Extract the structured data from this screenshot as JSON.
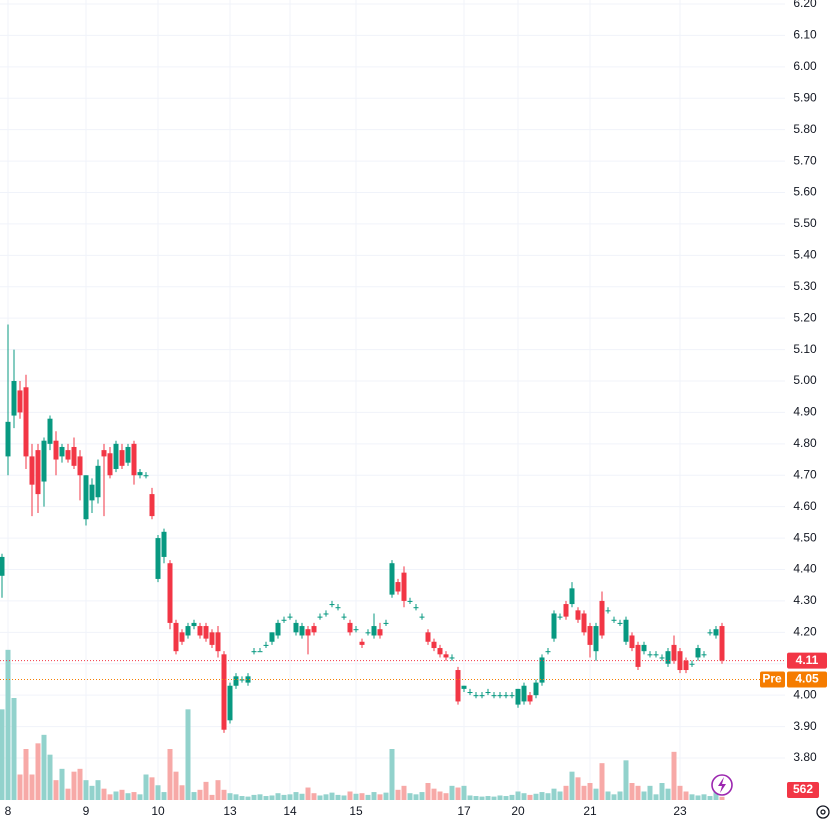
{
  "chart_data": {
    "type": "candlestick",
    "categories": [
      null,
      "8",
      null,
      null,
      null,
      null,
      null,
      null,
      null,
      null,
      null,
      null,
      null,
      null,
      "9",
      null,
      null,
      null,
      null,
      null,
      null,
      null,
      null,
      null,
      null,
      null,
      "10",
      null,
      null,
      null,
      null,
      null,
      null,
      null,
      null,
      null,
      null,
      null,
      "13",
      null,
      null,
      null,
      null,
      null,
      null,
      null,
      null,
      null,
      "14",
      null,
      null,
      null,
      null,
      null,
      null,
      null,
      null,
      null,
      null,
      "15",
      null,
      null,
      null,
      null,
      null,
      null,
      null,
      null,
      null,
      null,
      null,
      null,
      null,
      null,
      null,
      null,
      null,
      "17",
      null,
      null,
      null,
      null,
      null,
      null,
      null,
      null,
      "20",
      null,
      null,
      null,
      null,
      null,
      null,
      null,
      null,
      null,
      null,
      null,
      "21",
      null,
      null,
      null,
      null,
      null,
      null,
      null,
      null,
      null,
      null,
      null,
      null,
      null,
      null,
      "23",
      null,
      null,
      null,
      null,
      null,
      null,
      null
    ],
    "ohlc": [
      [
        4.38,
        4.45,
        4.31,
        4.44
      ],
      [
        4.76,
        5.18,
        4.7,
        4.87
      ],
      [
        4.89,
        5.1,
        4.85,
        5.0
      ],
      [
        4.97,
        5.0,
        4.88,
        4.9
      ],
      [
        4.98,
        5.02,
        4.72,
        4.76
      ],
      [
        4.76,
        4.8,
        4.57,
        4.67
      ],
      [
        4.78,
        4.8,
        4.58,
        4.64
      ],
      [
        4.68,
        4.82,
        4.6,
        4.81
      ],
      [
        4.8,
        4.89,
        4.78,
        4.88
      ],
      [
        4.81,
        4.84,
        4.7,
        4.75
      ],
      [
        4.76,
        4.8,
        4.74,
        4.79
      ],
      [
        4.78,
        4.8,
        4.74,
        4.75
      ],
      [
        4.79,
        4.82,
        4.72,
        4.73
      ],
      [
        4.76,
        4.78,
        4.62,
        4.7
      ],
      [
        4.56,
        4.7,
        4.54,
        4.7
      ],
      [
        4.62,
        4.69,
        4.58,
        4.67
      ],
      [
        4.63,
        4.75,
        4.61,
        4.73
      ],
      [
        4.78,
        4.8,
        4.57,
        4.76
      ],
      [
        4.77,
        4.79,
        4.69,
        4.7
      ],
      [
        4.72,
        4.81,
        4.71,
        4.8
      ],
      [
        4.78,
        4.8,
        4.72,
        4.73
      ],
      [
        4.74,
        4.8,
        4.73,
        4.79
      ],
      [
        4.8,
        4.81,
        4.67,
        4.7
      ],
      [
        4.7,
        4.72,
        4.69,
        4.71
      ],
      [
        4.7,
        4.71,
        4.69,
        4.7
      ],
      [
        4.64,
        4.66,
        4.56,
        4.57
      ],
      [
        4.37,
        4.51,
        4.36,
        4.5
      ],
      [
        4.44,
        4.53,
        4.42,
        4.52
      ],
      [
        4.42,
        4.43,
        4.21,
        4.23
      ],
      [
        4.23,
        4.24,
        4.13,
        4.14
      ],
      [
        4.2,
        4.21,
        4.16,
        4.17
      ],
      [
        4.19,
        4.23,
        4.18,
        4.22
      ],
      [
        4.22,
        4.24,
        4.21,
        4.23
      ],
      [
        4.22,
        4.23,
        4.18,
        4.19
      ],
      [
        4.22,
        4.23,
        4.17,
        4.18
      ],
      [
        4.2,
        4.21,
        4.15,
        4.16
      ],
      [
        4.2,
        4.22,
        4.12,
        4.14
      ],
      [
        4.13,
        4.14,
        3.88,
        3.89
      ],
      [
        3.92,
        4.04,
        3.91,
        4.03
      ],
      [
        4.03,
        4.07,
        4.02,
        4.06
      ],
      [
        4.05,
        4.06,
        4.04,
        4.05
      ],
      [
        4.04,
        4.07,
        4.03,
        4.06
      ],
      [
        4.14,
        4.15,
        4.13,
        4.14
      ],
      [
        4.14,
        4.15,
        4.14,
        4.14
      ],
      [
        4.16,
        4.17,
        4.15,
        4.16
      ],
      [
        4.17,
        4.2,
        4.16,
        4.2
      ],
      [
        4.19,
        4.24,
        4.18,
        4.23
      ],
      [
        4.24,
        4.25,
        4.23,
        4.24
      ],
      [
        4.25,
        4.26,
        4.24,
        4.25
      ],
      [
        4.2,
        4.24,
        4.19,
        4.23
      ],
      [
        4.19,
        4.23,
        4.18,
        4.22
      ],
      [
        4.21,
        4.22,
        4.13,
        4.19
      ],
      [
        4.22,
        4.23,
        4.19,
        4.2
      ],
      [
        4.25,
        4.26,
        4.24,
        4.25
      ],
      [
        4.26,
        4.27,
        4.25,
        4.26
      ],
      [
        4.29,
        4.3,
        4.28,
        4.29
      ],
      [
        4.28,
        4.29,
        4.27,
        4.28
      ],
      [
        4.25,
        4.26,
        4.24,
        4.25
      ],
      [
        4.23,
        4.24,
        4.19,
        4.2
      ],
      [
        4.21,
        4.22,
        4.2,
        4.21
      ],
      [
        4.17,
        4.18,
        4.15,
        4.16
      ],
      [
        4.2,
        4.21,
        4.19,
        4.2
      ],
      [
        4.19,
        4.26,
        4.18,
        4.22
      ],
      [
        4.21,
        4.23,
        4.18,
        4.19
      ],
      [
        4.23,
        4.24,
        4.22,
        4.23
      ],
      [
        4.32,
        4.43,
        4.31,
        4.42
      ],
      [
        4.36,
        4.37,
        4.32,
        4.33
      ],
      [
        4.39,
        4.41,
        4.28,
        4.3
      ],
      [
        4.3,
        4.31,
        4.29,
        4.3
      ],
      [
        4.28,
        4.29,
        4.27,
        4.28
      ],
      [
        4.25,
        4.26,
        4.24,
        4.25
      ],
      [
        4.2,
        4.21,
        4.16,
        4.17
      ],
      [
        4.17,
        4.18,
        4.14,
        4.15
      ],
      [
        4.15,
        4.16,
        4.12,
        4.13
      ],
      [
        4.13,
        4.14,
        4.11,
        4.12
      ],
      [
        4.12,
        4.13,
        4.11,
        4.12
      ],
      [
        4.08,
        4.09,
        3.97,
        3.98
      ],
      [
        4.02,
        4.03,
        4.01,
        4.03
      ],
      [
        4.01,
        4.02,
        4.0,
        4.01
      ],
      [
        4.0,
        4.01,
        3.99,
        4.0
      ],
      [
        4.0,
        4.01,
        3.99,
        4.0
      ],
      [
        4.01,
        4.02,
        4.0,
        4.01
      ],
      [
        4.0,
        4.01,
        3.99,
        4.0
      ],
      [
        4.0,
        4.01,
        3.99,
        4.0
      ],
      [
        4.0,
        4.01,
        3.99,
        4.0
      ],
      [
        4.0,
        4.01,
        3.99,
        4.0
      ],
      [
        3.97,
        4.02,
        3.96,
        4.02
      ],
      [
        3.98,
        4.04,
        3.97,
        4.03
      ],
      [
        4.0,
        4.01,
        3.97,
        3.98
      ],
      [
        4.0,
        4.05,
        3.99,
        4.04
      ],
      [
        4.04,
        4.13,
        4.03,
        4.12
      ],
      [
        4.14,
        4.15,
        4.13,
        4.14
      ],
      [
        4.18,
        4.27,
        4.17,
        4.26
      ],
      [
        4.25,
        4.26,
        4.24,
        4.25
      ],
      [
        4.29,
        4.3,
        4.24,
        4.25
      ],
      [
        4.29,
        4.36,
        4.28,
        4.34
      ],
      [
        4.27,
        4.28,
        4.23,
        4.24
      ],
      [
        4.26,
        4.27,
        4.19,
        4.2
      ],
      [
        4.22,
        4.23,
        4.12,
        4.16
      ],
      [
        4.14,
        4.23,
        4.11,
        4.22
      ],
      [
        4.3,
        4.33,
        4.18,
        4.19
      ],
      [
        4.27,
        4.28,
        4.26,
        4.27
      ],
      [
        4.24,
        4.25,
        4.23,
        4.24
      ],
      [
        4.23,
        4.24,
        4.22,
        4.23
      ],
      [
        4.17,
        4.25,
        4.16,
        4.24
      ],
      [
        4.19,
        4.2,
        4.14,
        4.15
      ],
      [
        4.16,
        4.17,
        4.08,
        4.09
      ],
      [
        4.14,
        4.17,
        4.13,
        4.16
      ],
      [
        4.13,
        4.14,
        4.12,
        4.13
      ],
      [
        4.13,
        4.14,
        4.12,
        4.13
      ],
      [
        4.12,
        4.13,
        4.11,
        4.12
      ],
      [
        4.1,
        4.15,
        4.09,
        4.14
      ],
      [
        4.16,
        4.19,
        4.1,
        4.11
      ],
      [
        4.14,
        4.15,
        4.07,
        4.08
      ],
      [
        4.11,
        4.12,
        4.07,
        4.08
      ],
      [
        4.1,
        4.11,
        4.09,
        4.1
      ],
      [
        4.12,
        4.16,
        4.11,
        4.15
      ],
      [
        4.13,
        4.14,
        4.12,
        4.13
      ],
      [
        4.2,
        4.21,
        4.19,
        4.2
      ],
      [
        4.19,
        4.22,
        4.18,
        4.21
      ],
      [
        4.22,
        4.23,
        4.1,
        4.11
      ]
    ],
    "volume": [
      16000,
      26500,
      18000,
      4500,
      9000,
      4500,
      10000,
      11500,
      8000,
      3500,
      5500,
      2000,
      5000,
      5500,
      3500,
      2500,
      3500,
      2000,
      1000,
      1500,
      1800,
      1200,
      1400,
      1000,
      4500,
      4000,
      2600,
      1400,
      9000,
      5000,
      2600,
      16000,
      1400,
      1800,
      3200,
      900,
      3500,
      1800,
      1200,
      1000,
      700,
      600,
      900,
      1000,
      700,
      800,
      1200,
      900,
      1000,
      1400,
      1100,
      2200,
      1200,
      800,
      1000,
      1300,
      900,
      800,
      1500,
      1100,
      1200,
      900,
      1400,
      1000,
      1300,
      9000,
      1800,
      2500,
      1200,
      1000,
      1400,
      3000,
      2000,
      1500,
      1200,
      2500,
      2200,
      2500,
      800,
      700,
      600,
      700,
      600,
      800,
      700,
      900,
      1500,
      1200,
      900,
      1100,
      1400,
      1200,
      2000,
      1500,
      2500,
      5000,
      4000,
      2500,
      3000,
      2000,
      6500,
      1500,
      1000,
      1500,
      7000,
      3000,
      2500,
      1500,
      2500,
      1000,
      3000,
      2000,
      8500,
      2500,
      1500,
      1000,
      800,
      1000,
      700,
      1500,
      562
    ],
    "up_color": "#089981",
    "down_color": "#f23645",
    "volume_up_color": "#92d2cc",
    "volume_down_color": "#f7a9a7",
    "ylim": [
      3.8,
      6.2
    ],
    "yticks": [
      {
        "value": 6.2,
        "label": "6.20"
      },
      {
        "value": 6.1,
        "label": "6.10"
      },
      {
        "value": 6.0,
        "label": "6.00"
      },
      {
        "value": 5.9,
        "label": "5.90"
      },
      {
        "value": 5.8,
        "label": "5.80"
      },
      {
        "value": 5.7,
        "label": "5.70"
      },
      {
        "value": 5.6,
        "label": "5.60"
      },
      {
        "value": 5.5,
        "label": "5.50"
      },
      {
        "value": 5.4,
        "label": "5.40"
      },
      {
        "value": 5.3,
        "label": "5.30"
      },
      {
        "value": 5.2,
        "label": "5.20"
      },
      {
        "value": 5.1,
        "label": "5.10"
      },
      {
        "value": 5.0,
        "label": "5.00"
      },
      {
        "value": 4.9,
        "label": "4.90"
      },
      {
        "value": 4.8,
        "label": "4.80"
      },
      {
        "value": 4.7,
        "label": "4.70"
      },
      {
        "value": 4.6,
        "label": "4.60"
      },
      {
        "value": 4.5,
        "label": "4.50"
      },
      {
        "value": 4.4,
        "label": "4.40"
      },
      {
        "value": 4.3,
        "label": "4.30"
      },
      {
        "value": 4.2,
        "label": "4.20"
      },
      {
        "value": 4.1,
        "label": "4.10"
      },
      {
        "value": 4.0,
        "label": "4.00"
      },
      {
        "value": 3.9,
        "label": "3.90"
      },
      {
        "value": 3.8,
        "label": "3.80"
      }
    ],
    "y2lim": [
      0,
      30000
    ],
    "grid": true,
    "pre_market": {
      "label": "Pre",
      "value": 4.05,
      "color": "#f57c00"
    }
  }
}
